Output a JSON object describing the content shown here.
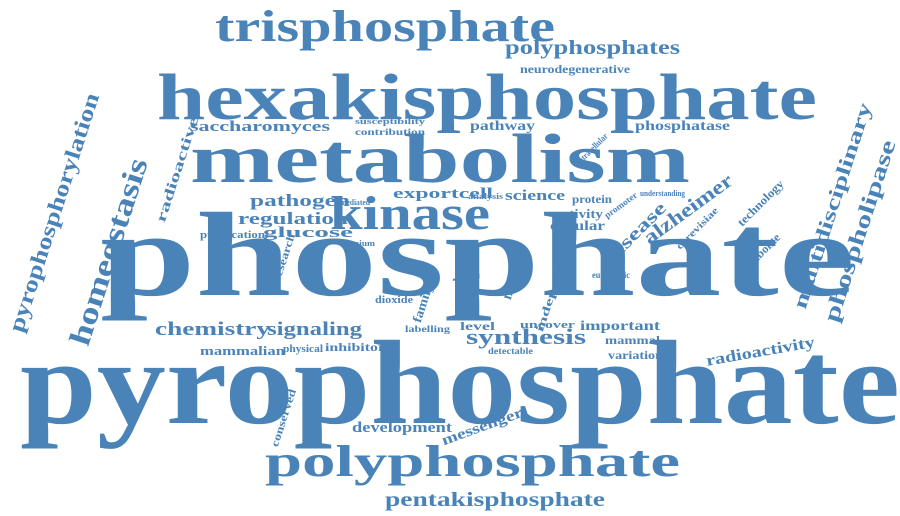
{
  "color": "#4a83b8",
  "words": [
    "trisphosphate",
    "polyphosphates",
    "neurodegenerative",
    "hexakisphosphate",
    "saccharomyces",
    "susceptibility",
    "contribution",
    "pathway",
    "phosphatase",
    "metabolism",
    "kinase",
    "phosphate",
    "pyrophosphate",
    "pyrophosphorylation",
    "homeostasis",
    "radioactive",
    "multidisciplinary",
    "phospholipase",
    "pathogen",
    "regulation",
    "glucose",
    "purification",
    "exportcell",
    "science",
    "protein",
    "activity",
    "cellular",
    "disease",
    "alzheimer",
    "technology",
    "metabolite",
    "cerevisiae",
    "chemistry",
    "signaling",
    "mammalian",
    "physical",
    "inhibitor",
    "synthesis",
    "important",
    "mammal",
    "variation",
    "level",
    "uncover",
    "radioactivity",
    "molecule",
    "domain",
    "family",
    "labelling",
    "dioxide",
    "development",
    "messenger",
    "conserved",
    "polyphosphate",
    "pentakisphosphate",
    "independent",
    "eukaryotic",
    "line",
    "human",
    "detectable",
    "research",
    "titanium",
    "mediated",
    "analysis",
    "understanding",
    "promoter",
    "intracellular"
  ]
}
